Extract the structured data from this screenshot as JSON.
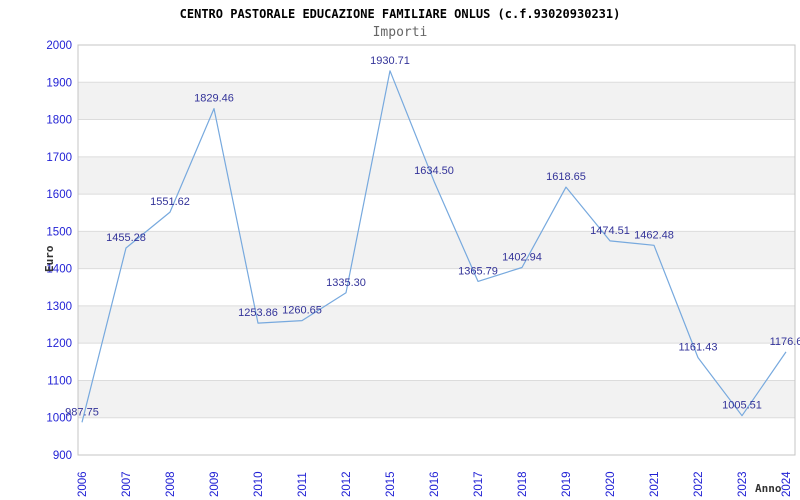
{
  "header": {
    "title": "CENTRO PASTORALE EDUCAZIONE FAMILIARE ONLUS (c.f.93020930231)",
    "subtitle": "Importi"
  },
  "chart_data": {
    "type": "line",
    "title": "CENTRO PASTORALE EDUCAZIONE FAMILIARE ONLUS (c.f.93020930231)",
    "subtitle": "Importi",
    "xlabel": "Anno",
    "ylabel": "Euro",
    "categories": [
      "2006",
      "2007",
      "2008",
      "2009",
      "2010",
      "2011",
      "2012",
      "2015",
      "2016",
      "2017",
      "2018",
      "2019",
      "2020",
      "2021",
      "2022",
      "2023",
      "2024"
    ],
    "values": [
      987.75,
      1455.28,
      1551.62,
      1829.46,
      1253.86,
      1260.65,
      1335.3,
      1930.71,
      1634.5,
      1365.79,
      1402.94,
      1618.65,
      1474.51,
      1462.48,
      1161.43,
      1005.51,
      1176.6
    ],
    "point_labels": [
      "987.75",
      "1455.28",
      "1551.62",
      "1829.46",
      "1253.86",
      "1260.65",
      "1335.30",
      "1930.71",
      "1634.50",
      "1365.79",
      "1402.94",
      "1618.65",
      "1474.51",
      "1462.48",
      "1161.43",
      "1005.51",
      "1176.6"
    ],
    "ylim": [
      900,
      2000
    ],
    "ytick_step": 100,
    "ytick_labels": [
      "900",
      "1000",
      "1100",
      "1200",
      "1300",
      "1400",
      "1500",
      "1600",
      "1700",
      "1800",
      "1900",
      "2000"
    ],
    "grid": true,
    "legend_position": "none",
    "colors": {
      "line": "#77a9de",
      "point_label": "#333399",
      "tick_label": "#2222d5",
      "band": "#f2f2f2",
      "gridline": "#dcdcdc",
      "border": "#c4c4c4",
      "axis_title": "#333333",
      "title": "#000000",
      "subtitle": "#666666"
    }
  }
}
